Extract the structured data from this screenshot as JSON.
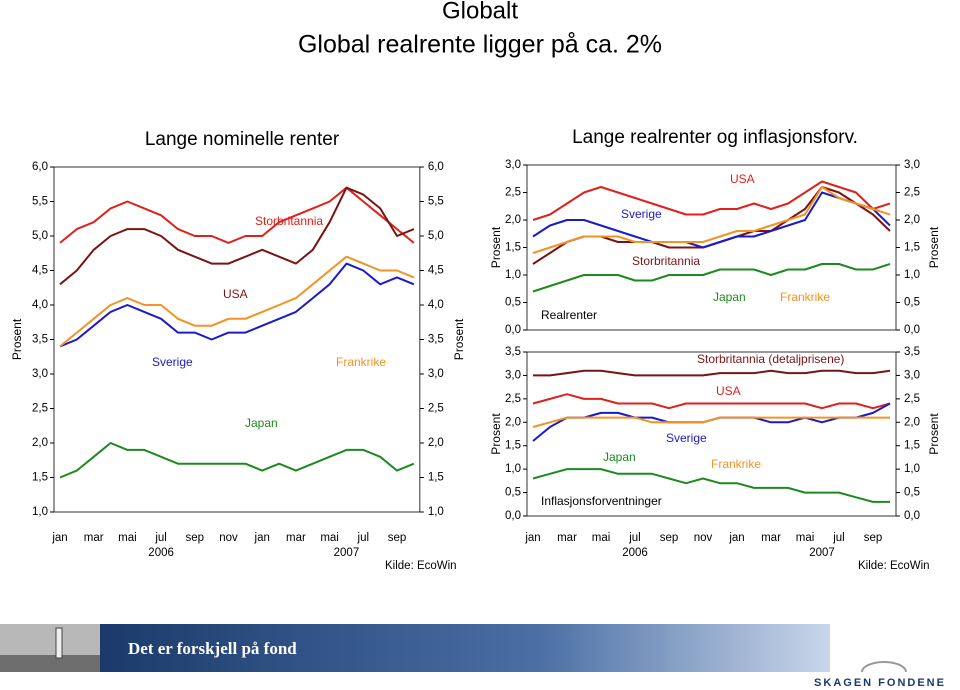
{
  "header": {
    "title": "Globalt",
    "subtitle": "Global realrente ligger på ca. 2%"
  },
  "footer": {
    "slogan": "Det er forskjell på fond",
    "logo": "SKAGEN FONDENE"
  },
  "chart_data": [
    {
      "type": "line",
      "title": "Lange nominelle renter",
      "ylabel": "Prosent",
      "source": "Kilde: EcoWin",
      "categories": [
        "jan",
        null,
        "mar",
        null,
        "mai",
        null,
        "jul",
        null,
        "sep",
        null,
        "nov",
        null,
        "jan",
        null,
        "mar",
        null,
        "mai",
        null,
        "jul",
        null,
        "sep",
        null
      ],
      "years": [
        "2006",
        "2007"
      ],
      "ylim": [
        1.0,
        6.0
      ],
      "yticks": [
        {
          "value": 1.0,
          "label": "1,0"
        },
        {
          "value": 1.5,
          "label": "1,5"
        },
        {
          "value": 2.0,
          "label": "2,0"
        },
        {
          "value": 2.5,
          "label": "2,5"
        },
        {
          "value": 3.0,
          "label": "3,0"
        },
        {
          "value": 3.5,
          "label": "3,5"
        },
        {
          "value": 4.0,
          "label": "4,0"
        },
        {
          "value": 4.5,
          "label": "4,5"
        },
        {
          "value": 5.0,
          "label": "5,0"
        },
        {
          "value": 5.5,
          "label": "5,5"
        },
        {
          "value": 6.0,
          "label": "6,0"
        }
      ],
      "series": [
        {
          "name": "Storbritannia",
          "color": "#e0201b",
          "values": [
            4.9,
            5.1,
            5.2,
            5.4,
            5.5,
            5.4,
            5.3,
            5.1,
            5.0,
            5.0,
            4.9,
            5.0,
            5.0,
            5.2,
            5.3,
            5.4,
            5.5,
            5.7,
            5.5,
            5.3,
            5.1,
            4.9
          ]
        },
        {
          "name": "USA",
          "color": "#7a1414",
          "values": [
            4.3,
            4.5,
            4.8,
            5.0,
            5.1,
            5.1,
            5.0,
            4.8,
            4.7,
            4.6,
            4.6,
            4.7,
            4.8,
            4.7,
            4.6,
            4.8,
            5.2,
            5.7,
            5.6,
            5.4,
            5.0,
            5.1
          ]
        },
        {
          "name": "Sverige",
          "color": "#1a1acc",
          "values": [
            3.4,
            3.5,
            3.7,
            3.9,
            4.0,
            3.9,
            3.8,
            3.6,
            3.6,
            3.5,
            3.6,
            3.6,
            3.7,
            3.8,
            3.9,
            4.1,
            4.3,
            4.6,
            4.5,
            4.3,
            4.4,
            4.3
          ]
        },
        {
          "name": "Frankrike",
          "color": "#f39323",
          "values": [
            3.4,
            3.6,
            3.8,
            4.0,
            4.1,
            4.0,
            4.0,
            3.8,
            3.7,
            3.7,
            3.8,
            3.8,
            3.9,
            4.0,
            4.1,
            4.3,
            4.5,
            4.7,
            4.6,
            4.5,
            4.5,
            4.4
          ]
        },
        {
          "name": "Japan",
          "color": "#1e8a1e",
          "values": [
            1.5,
            1.6,
            1.8,
            2.0,
            1.9,
            1.9,
            1.8,
            1.7,
            1.7,
            1.7,
            1.7,
            1.7,
            1.6,
            1.7,
            1.6,
            1.7,
            1.8,
            1.9,
            1.9,
            1.8,
            1.6,
            1.7
          ]
        }
      ]
    },
    {
      "type": "line",
      "title": "Lange realrenter og inflasjonsforv.",
      "ylabel": "Prosent",
      "source": "Kilde: EcoWin",
      "categories": [
        "jan",
        null,
        "mar",
        null,
        "mai",
        null,
        "jul",
        null,
        "sep",
        null,
        "nov",
        null,
        "jan",
        null,
        "mar",
        null,
        "mai",
        null,
        "jul",
        null,
        "sep",
        null
      ],
      "years": [
        "2006",
        "2007"
      ],
      "panels": [
        {
          "annotation": "Realrenter",
          "ylim": [
            0.0,
            3.0
          ],
          "yticks": [
            {
              "value": 0.0,
              "label": "0,0"
            },
            {
              "value": 0.5,
              "label": "0,5"
            },
            {
              "value": 1.0,
              "label": "1,0"
            },
            {
              "value": 1.5,
              "label": "1,5"
            },
            {
              "value": 2.0,
              "label": "2,0"
            },
            {
              "value": 2.5,
              "label": "2,5"
            },
            {
              "value": 3.0,
              "label": "3,0"
            }
          ],
          "series": [
            {
              "name": "USA",
              "color": "#e0201b",
              "values": [
                2.0,
                2.1,
                2.3,
                2.5,
                2.6,
                2.5,
                2.4,
                2.3,
                2.2,
                2.1,
                2.1,
                2.2,
                2.2,
                2.3,
                2.2,
                2.3,
                2.5,
                2.7,
                2.6,
                2.5,
                2.2,
                2.3
              ]
            },
            {
              "name": "Storbritannia",
              "color": "#7a1414",
              "values": [
                1.2,
                1.4,
                1.6,
                1.7,
                1.7,
                1.6,
                1.6,
                1.6,
                1.5,
                1.5,
                1.5,
                1.6,
                1.7,
                1.8,
                1.8,
                2.0,
                2.2,
                2.6,
                2.5,
                2.3,
                2.1,
                1.8
              ]
            },
            {
              "name": "Sverige",
              "color": "#1a1acc",
              "values": [
                1.7,
                1.9,
                2.0,
                2.0,
                1.9,
                1.8,
                1.7,
                1.6,
                1.6,
                1.6,
                1.5,
                1.6,
                1.7,
                1.7,
                1.8,
                1.9,
                2.0,
                2.5,
                2.4,
                2.3,
                2.2,
                1.9
              ]
            },
            {
              "name": "Frankrike",
              "color": "#f39323",
              "values": [
                1.4,
                1.5,
                1.6,
                1.7,
                1.7,
                1.7,
                1.6,
                1.6,
                1.6,
                1.6,
                1.6,
                1.7,
                1.8,
                1.8,
                1.9,
                2.0,
                2.1,
                2.6,
                2.4,
                2.3,
                2.2,
                2.1
              ]
            },
            {
              "name": "Japan",
              "color": "#1e8a1e",
              "values": [
                0.7,
                0.8,
                0.9,
                1.0,
                1.0,
                1.0,
                0.9,
                0.9,
                1.0,
                1.0,
                1.0,
                1.1,
                1.1,
                1.1,
                1.0,
                1.1,
                1.1,
                1.2,
                1.2,
                1.1,
                1.1,
                1.2
              ]
            }
          ]
        },
        {
          "annotation": "Inflasjonsforventninger",
          "ylim": [
            0.0,
            3.5
          ],
          "yticks": [
            {
              "value": 0.0,
              "label": "0,0"
            },
            {
              "value": 0.5,
              "label": "0,5"
            },
            {
              "value": 1.0,
              "label": "1,0"
            },
            {
              "value": 1.5,
              "label": "1,5"
            },
            {
              "value": 2.0,
              "label": "2,0"
            },
            {
              "value": 2.5,
              "label": "2,5"
            },
            {
              "value": 3.0,
              "label": "3,0"
            },
            {
              "value": 3.5,
              "label": "3,5"
            }
          ],
          "series": [
            {
              "name": "Storbritannia (detaljprisene)",
              "color": "#7a1414",
              "values": [
                3.0,
                3.0,
                3.05,
                3.1,
                3.1,
                3.05,
                3.0,
                3.0,
                3.0,
                3.0,
                3.0,
                3.05,
                3.05,
                3.05,
                3.1,
                3.05,
                3.05,
                3.1,
                3.1,
                3.05,
                3.05,
                3.1
              ]
            },
            {
              "name": "USA",
              "color": "#e0201b",
              "values": [
                2.4,
                2.5,
                2.6,
                2.5,
                2.5,
                2.4,
                2.4,
                2.4,
                2.3,
                2.4,
                2.4,
                2.4,
                2.4,
                2.4,
                2.4,
                2.4,
                2.4,
                2.3,
                2.4,
                2.4,
                2.3,
                2.4
              ]
            },
            {
              "name": "Sverige",
              "color": "#1a1acc",
              "values": [
                1.6,
                1.9,
                2.1,
                2.1,
                2.2,
                2.2,
                2.1,
                2.1,
                2.0,
                2.0,
                2.0,
                2.1,
                2.1,
                2.1,
                2.0,
                2.0,
                2.1,
                2.0,
                2.1,
                2.1,
                2.2,
                2.4
              ]
            },
            {
              "name": "Frankrike",
              "color": "#f39323",
              "values": [
                1.9,
                2.0,
                2.1,
                2.1,
                2.1,
                2.1,
                2.1,
                2.0,
                2.0,
                2.0,
                2.0,
                2.1,
                2.1,
                2.1,
                2.1,
                2.1,
                2.1,
                2.1,
                2.1,
                2.1,
                2.1,
                2.1
              ]
            },
            {
              "name": "Japan",
              "color": "#1e8a1e",
              "values": [
                0.8,
                0.9,
                1.0,
                1.0,
                1.0,
                0.9,
                0.9,
                0.9,
                0.8,
                0.7,
                0.8,
                0.7,
                0.7,
                0.6,
                0.6,
                0.6,
                0.5,
                0.5,
                0.5,
                0.4,
                0.3,
                0.3
              ]
            }
          ]
        }
      ]
    }
  ]
}
